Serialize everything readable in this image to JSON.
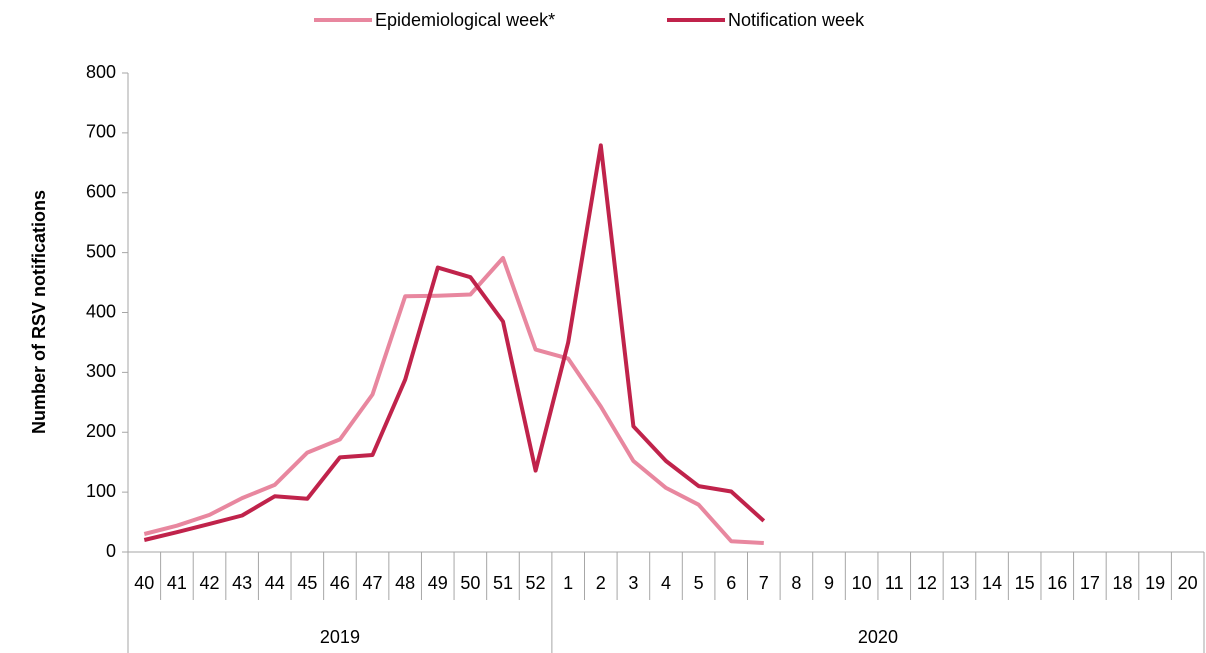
{
  "chart_data": {
    "type": "line",
    "y_label": "Number of RSV notifications",
    "category_groups": [
      {
        "name": "2019",
        "categories": [
          "40",
          "41",
          "42",
          "43",
          "44",
          "45",
          "46",
          "47",
          "48",
          "49",
          "50",
          "51",
          "52"
        ]
      },
      {
        "name": "2020",
        "categories": [
          "1",
          "2",
          "3",
          "4",
          "5",
          "6",
          "7",
          "8",
          "9",
          "10",
          "11",
          "12",
          "13",
          "14",
          "15",
          "16",
          "17",
          "18",
          "19",
          "20"
        ]
      }
    ],
    "series": [
      {
        "name": "Epidemiological week*",
        "color": "#e8879f",
        "values": [
          30,
          44,
          62,
          90,
          112,
          166,
          188,
          263,
          427,
          428,
          430,
          491,
          338,
          323,
          243,
          152,
          107,
          79,
          18,
          15,
          null,
          null,
          null,
          null,
          null,
          null,
          null,
          null,
          null,
          null,
          null,
          null,
          null
        ]
      },
      {
        "name": "Notification week",
        "color": "#c0234b",
        "values": [
          20,
          33,
          47,
          61,
          93,
          89,
          158,
          162,
          288,
          475,
          459,
          385,
          136,
          350,
          679,
          210,
          152,
          110,
          101,
          52,
          null,
          null,
          null,
          null,
          null,
          null,
          null,
          null,
          null,
          null,
          null,
          null,
          null
        ]
      }
    ],
    "ylim": [
      0,
      800
    ],
    "yticks": [
      0,
      100,
      200,
      300,
      400,
      500,
      600,
      700,
      800
    ],
    "grid": false,
    "legend": "top"
  }
}
